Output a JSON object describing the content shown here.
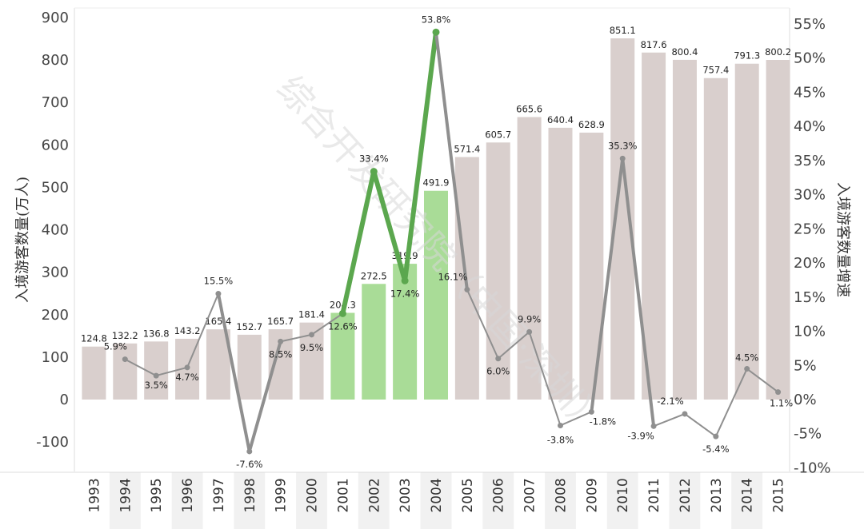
{
  "chart_data": {
    "type": "bar+line",
    "years": [
      "1993",
      "1994",
      "1995",
      "1996",
      "1997",
      "1998",
      "1999",
      "2000",
      "2001",
      "2002",
      "2003",
      "2004",
      "2005",
      "2006",
      "2007",
      "2008",
      "2009",
      "2010",
      "2011",
      "2012",
      "2013",
      "2014",
      "2015"
    ],
    "bars": [
      124.8,
      132.2,
      136.8,
      143.2,
      165.4,
      152.7,
      165.7,
      181.4,
      204.3,
      272.5,
      319.9,
      491.9,
      571.4,
      605.7,
      665.6,
      640.4,
      628.9,
      851.1,
      817.6,
      800.4,
      757.4,
      791.3,
      800.2
    ],
    "bar_labels": [
      "124.8",
      "132.2",
      "136.8",
      "143.2",
      "165.4",
      "152.7",
      "165.7",
      "181.4",
      "204.3",
      "272.5",
      "319.9",
      "491.9",
      "571.4",
      "605.7",
      "665.6",
      "640.4",
      "628.9",
      "851.1",
      "817.6",
      "800.4",
      "757.4",
      "791.3",
      "800.2"
    ],
    "highlight_years": [
      "2001",
      "2002",
      "2003",
      "2004"
    ],
    "growth": [
      null,
      5.9,
      3.5,
      4.7,
      15.5,
      -7.6,
      8.5,
      9.5,
      12.6,
      33.4,
      17.4,
      53.8,
      16.1,
      6.0,
      9.9,
      -3.8,
      -1.8,
      35.3,
      -3.9,
      -2.1,
      -5.4,
      4.5,
      1.1
    ],
    "growth_labels": [
      "",
      "5.9%",
      "3.5%",
      "4.7%",
      "15.5%",
      "-7.6%",
      "8.5%",
      "9.5%",
      "12.6%",
      "33.4%",
      "17.4%",
      "53.8%",
      "16.1%",
      "6.0%",
      "9.9%",
      "-3.8%",
      "-1.8%",
      "35.3%",
      "-3.9%",
      "-2.1%",
      "-5.4%",
      "4.5%",
      "1.1%"
    ],
    "ylabel": "入境游客数量(万人)",
    "y2label": "入境游客数量增速",
    "ylim": [
      -170,
      900
    ],
    "y2lim": [
      -10,
      55
    ],
    "yticks": [
      -100,
      0,
      100,
      200,
      300,
      400,
      500,
      600,
      700,
      800,
      900
    ],
    "ytick_labels": [
      "-100",
      "0",
      "100",
      "200",
      "300",
      "400",
      "500",
      "600",
      "700",
      "800",
      "900"
    ],
    "y2ticks": [
      -10,
      -5,
      0,
      5,
      10,
      15,
      20,
      25,
      30,
      35,
      40,
      45,
      50,
      55
    ],
    "y2tick_labels": [
      "-10%",
      "-5%",
      "0%",
      "5%",
      "10%",
      "15%",
      "20%",
      "25%",
      "30%",
      "35%",
      "40%",
      "45%",
      "50%",
      "55%"
    ],
    "watermark": "综合开发研究院（中国·深圳）",
    "colors": {
      "bar": "#d9cfcd",
      "bar_highlight": "#a9dc97",
      "line": "#8f8f8f",
      "line_highlight": "#5ba74e",
      "year_band": "#f1f1f1"
    }
  }
}
